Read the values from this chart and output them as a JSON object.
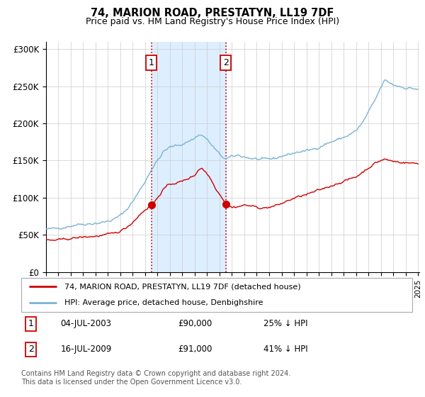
{
  "title": "74, MARION ROAD, PRESTATYN, LL19 7DF",
  "subtitle": "Price paid vs. HM Land Registry's House Price Index (HPI)",
  "ylim": [
    0,
    310000
  ],
  "yticks": [
    0,
    50000,
    100000,
    150000,
    200000,
    250000,
    300000
  ],
  "ytick_labels": [
    "£0",
    "£50K",
    "£100K",
    "£150K",
    "£200K",
    "£250K",
    "£300K"
  ],
  "sale1_year": 2003,
  "sale1_month": 7,
  "sale1_price": 90000,
  "sale2_year": 2009,
  "sale2_month": 7,
  "sale2_price": 91000,
  "hpi_color": "#7ab3d4",
  "price_color": "#cc0000",
  "shading_color": "#ddeeff",
  "vline_color": "#cc0000",
  "legend_label_price": "74, MARION ROAD, PRESTATYN, LL19 7DF (detached house)",
  "legend_label_hpi": "HPI: Average price, detached house, Denbighshire",
  "footer": "Contains HM Land Registry data © Crown copyright and database right 2024.\nThis data is licensed under the Open Government Licence v3.0.",
  "background_color": "#ffffff",
  "grid_color": "#cccccc",
  "hpi_keypoints": [
    [
      1995.0,
      57000
    ],
    [
      1995.5,
      58000
    ],
    [
      1996.0,
      59000
    ],
    [
      1996.5,
      60500
    ],
    [
      1997.0,
      62000
    ],
    [
      1997.5,
      64000
    ],
    [
      1998.0,
      64500
    ],
    [
      1998.5,
      65000
    ],
    [
      1999.0,
      65500
    ],
    [
      1999.5,
      66500
    ],
    [
      2000.0,
      68000
    ],
    [
      2000.5,
      71000
    ],
    [
      2001.0,
      76000
    ],
    [
      2001.5,
      84000
    ],
    [
      2002.0,
      95000
    ],
    [
      2002.5,
      108000
    ],
    [
      2003.0,
      122000
    ],
    [
      2003.5,
      138000
    ],
    [
      2004.0,
      150000
    ],
    [
      2004.5,
      162000
    ],
    [
      2005.0,
      168000
    ],
    [
      2005.5,
      170000
    ],
    [
      2006.0,
      172000
    ],
    [
      2006.5,
      176000
    ],
    [
      2007.0,
      180000
    ],
    [
      2007.3,
      185000
    ],
    [
      2007.7,
      183000
    ],
    [
      2008.0,
      178000
    ],
    [
      2008.5,
      168000
    ],
    [
      2009.0,
      158000
    ],
    [
      2009.5,
      152000
    ],
    [
      2010.0,
      155000
    ],
    [
      2010.5,
      157000
    ],
    [
      2011.0,
      155000
    ],
    [
      2011.5,
      153000
    ],
    [
      2012.0,
      152000
    ],
    [
      2012.5,
      151000
    ],
    [
      2013.0,
      152000
    ],
    [
      2013.5,
      153000
    ],
    [
      2014.0,
      156000
    ],
    [
      2014.5,
      158000
    ],
    [
      2015.0,
      160000
    ],
    [
      2015.5,
      162000
    ],
    [
      2016.0,
      163000
    ],
    [
      2016.5,
      165000
    ],
    [
      2017.0,
      168000
    ],
    [
      2017.5,
      172000
    ],
    [
      2018.0,
      175000
    ],
    [
      2018.5,
      178000
    ],
    [
      2019.0,
      181000
    ],
    [
      2019.5,
      185000
    ],
    [
      2020.0,
      190000
    ],
    [
      2020.5,
      200000
    ],
    [
      2021.0,
      215000
    ],
    [
      2021.5,
      230000
    ],
    [
      2022.0,
      248000
    ],
    [
      2022.3,
      258000
    ],
    [
      2022.7,
      255000
    ],
    [
      2023.0,
      252000
    ],
    [
      2023.5,
      250000
    ],
    [
      2024.0,
      248000
    ],
    [
      2024.5,
      247000
    ],
    [
      2025.1,
      246000
    ]
  ],
  "price_keypoints": [
    [
      1995.0,
      42000
    ],
    [
      1995.5,
      42500
    ],
    [
      1996.0,
      43000
    ],
    [
      1996.5,
      44000
    ],
    [
      1997.0,
      45000
    ],
    [
      1997.5,
      46000
    ],
    [
      1998.0,
      47000
    ],
    [
      1998.5,
      47500
    ],
    [
      1999.0,
      48000
    ],
    [
      1999.5,
      49000
    ],
    [
      2000.0,
      50500
    ],
    [
      2000.5,
      52000
    ],
    [
      2001.0,
      55000
    ],
    [
      2001.5,
      60000
    ],
    [
      2002.0,
      67000
    ],
    [
      2002.5,
      76000
    ],
    [
      2003.0,
      84000
    ],
    [
      2003.58,
      90000
    ],
    [
      2004.0,
      100000
    ],
    [
      2004.5,
      112000
    ],
    [
      2005.0,
      118000
    ],
    [
      2005.5,
      120000
    ],
    [
      2006.0,
      122000
    ],
    [
      2006.5,
      126000
    ],
    [
      2007.0,
      130000
    ],
    [
      2007.3,
      138000
    ],
    [
      2007.6,
      140000
    ],
    [
      2008.0,
      132000
    ],
    [
      2008.3,
      125000
    ],
    [
      2008.6,
      115000
    ],
    [
      2009.0,
      105000
    ],
    [
      2009.58,
      91000
    ],
    [
      2010.0,
      87000
    ],
    [
      2010.5,
      88000
    ],
    [
      2011.0,
      90000
    ],
    [
      2011.5,
      89000
    ],
    [
      2012.0,
      87000
    ],
    [
      2012.5,
      86000
    ],
    [
      2013.0,
      87000
    ],
    [
      2013.5,
      89000
    ],
    [
      2014.0,
      92000
    ],
    [
      2014.5,
      96000
    ],
    [
      2015.0,
      99000
    ],
    [
      2015.5,
      102000
    ],
    [
      2016.0,
      104000
    ],
    [
      2016.5,
      107000
    ],
    [
      2017.0,
      110000
    ],
    [
      2017.5,
      113000
    ],
    [
      2018.0,
      116000
    ],
    [
      2018.5,
      119000
    ],
    [
      2019.0,
      122000
    ],
    [
      2019.5,
      125000
    ],
    [
      2020.0,
      128000
    ],
    [
      2020.5,
      134000
    ],
    [
      2021.0,
      140000
    ],
    [
      2021.5,
      146000
    ],
    [
      2022.0,
      150000
    ],
    [
      2022.3,
      152000
    ],
    [
      2022.7,
      150000
    ],
    [
      2023.0,
      149000
    ],
    [
      2023.5,
      148000
    ],
    [
      2024.0,
      147000
    ],
    [
      2024.5,
      146500
    ],
    [
      2025.1,
      146000
    ]
  ]
}
